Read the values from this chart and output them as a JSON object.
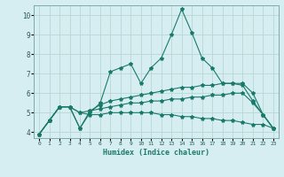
{
  "title": "",
  "xlabel": "Humidex (Indice chaleur)",
  "ylabel": "",
  "xlim": [
    -0.5,
    23.5
  ],
  "ylim": [
    3.7,
    10.5
  ],
  "xticks": [
    0,
    1,
    2,
    3,
    4,
    5,
    6,
    7,
    8,
    9,
    10,
    11,
    12,
    13,
    14,
    15,
    16,
    17,
    18,
    19,
    20,
    21,
    22,
    23
  ],
  "yticks": [
    4,
    5,
    6,
    7,
    8,
    9,
    10
  ],
  "bg_color": "#d6eef2",
  "grid_color": "#b8d8d0",
  "line_color": "#1a7a6a",
  "series": {
    "line1": {
      "x": [
        0,
        1,
        2,
        3,
        4,
        5,
        6,
        7,
        8,
        9,
        10,
        11,
        12,
        13,
        14,
        15,
        16,
        17,
        18,
        19,
        20,
        21,
        22,
        23
      ],
      "y": [
        3.9,
        4.6,
        5.3,
        5.3,
        4.2,
        5.0,
        5.5,
        7.1,
        7.3,
        7.5,
        6.5,
        7.3,
        7.8,
        9.0,
        10.3,
        9.1,
        7.8,
        7.3,
        6.5,
        6.5,
        6.4,
        5.6,
        4.9,
        4.2
      ]
    },
    "line2": {
      "x": [
        0,
        1,
        2,
        3,
        4,
        5,
        6,
        7,
        8,
        9,
        10,
        11,
        12,
        13,
        14,
        15,
        16,
        17,
        18,
        19,
        20,
        21,
        22,
        23
      ],
      "y": [
        3.9,
        4.6,
        5.3,
        5.3,
        4.2,
        5.1,
        5.4,
        5.6,
        5.7,
        5.8,
        5.9,
        6.0,
        6.1,
        6.2,
        6.3,
        6.3,
        6.4,
        6.4,
        6.5,
        6.5,
        6.5,
        6.0,
        4.9,
        4.2
      ]
    },
    "line3": {
      "x": [
        0,
        1,
        2,
        3,
        4,
        5,
        6,
        7,
        8,
        9,
        10,
        11,
        12,
        13,
        14,
        15,
        16,
        17,
        18,
        19,
        20,
        21,
        22,
        23
      ],
      "y": [
        3.9,
        4.6,
        5.3,
        5.3,
        5.0,
        5.1,
        5.2,
        5.3,
        5.4,
        5.5,
        5.5,
        5.6,
        5.6,
        5.7,
        5.7,
        5.8,
        5.8,
        5.9,
        5.9,
        6.0,
        6.0,
        5.5,
        4.9,
        4.2
      ]
    },
    "line4": {
      "x": [
        0,
        1,
        2,
        3,
        4,
        5,
        6,
        7,
        8,
        9,
        10,
        11,
        12,
        13,
        14,
        15,
        16,
        17,
        18,
        19,
        20,
        21,
        22,
        23
      ],
      "y": [
        3.9,
        4.6,
        5.3,
        5.3,
        5.0,
        4.9,
        4.9,
        5.0,
        5.0,
        5.0,
        5.0,
        5.0,
        4.9,
        4.9,
        4.8,
        4.8,
        4.7,
        4.7,
        4.6,
        4.6,
        4.5,
        4.4,
        4.4,
        4.2
      ]
    }
  }
}
